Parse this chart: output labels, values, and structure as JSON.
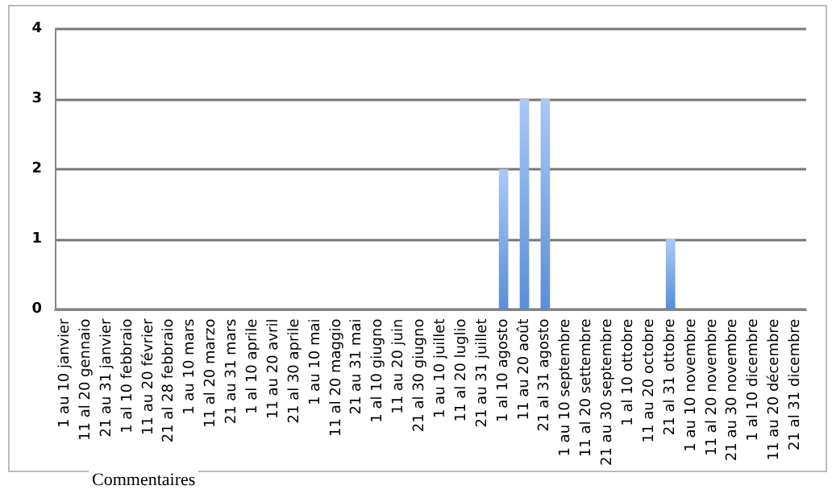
{
  "chart_data": {
    "type": "bar",
    "categories": [
      "1 au 10 janvier",
      "11 al 20 gennaio",
      "21 au 31 janvier",
      "1 al 10 febbraio",
      "11 au 20 février",
      "21 al 28 febbraio",
      "1 au 10 mars",
      "11 al 20 marzo",
      "21 au 31 mars",
      "1 al 10 aprile",
      "11 au 20 avril",
      "21 al 30 aprile",
      "1 au 10 mai",
      "11 al 20 maggio",
      "21 au 31 mai",
      "1 al 10 giugno",
      "11 au 20 juin",
      "21 al 30 giugno",
      "1 au 10 juillet",
      "11 al 20 luglio",
      "21 au 31 juillet",
      "1 al 10 agosto",
      "11 au 20 août",
      "21 al 31 agosto",
      "1 au 10 septembre",
      "11 al 20 settembre",
      "21 au 30 septembre",
      "1 al 10 ottobre",
      "11 au 20 octobre",
      "21 al 31 ottobre",
      "1 au 10 novembre",
      "11 al 20 novembre",
      "21 au 30 novembre",
      "1 al 10 dicembre",
      "11 au 20 décembre",
      "21 al 31 dicembre"
    ],
    "values": [
      0,
      0,
      0,
      0,
      0,
      0,
      0,
      0,
      0,
      0,
      0,
      0,
      0,
      0,
      0,
      0,
      0,
      0,
      0,
      0,
      0,
      2,
      3,
      3,
      0,
      0,
      0,
      0,
      0,
      1,
      0,
      0,
      0,
      0,
      0,
      0
    ],
    "color": "#5a8ed8",
    "ylim": [
      0,
      4
    ],
    "yticks": [
      0,
      1,
      2,
      3,
      4
    ],
    "grid": "y",
    "annotations": [
      "Commentaires"
    ]
  }
}
